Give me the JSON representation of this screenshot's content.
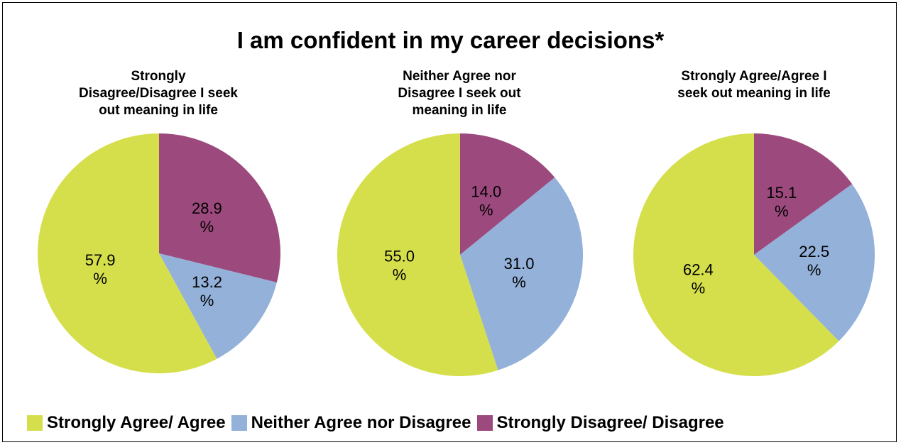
{
  "chart_data": {
    "type": "pie",
    "title": "I am confident in my career decisions*",
    "legend": {
      "position": "bottom",
      "entries": [
        {
          "label": "Strongly Agree/ Agree",
          "color": "#d5df4b"
        },
        {
          "label": "Neither Agree nor Disagree",
          "color": "#93b1d9"
        },
        {
          "label": "Strongly Disagree/ Disagree",
          "color": "#9c4a7d"
        }
      ]
    },
    "pies": [
      {
        "title": "Strongly Disagree/Disagree I seek out meaning in life",
        "title_lines": [
          "Strongly",
          "Disagree/Disagree I seek",
          "out meaning in life"
        ],
        "slices": [
          {
            "label": "Strongly Disagree/ Disagree",
            "value": 28.9,
            "text_lines": [
              "28.9",
              "%"
            ],
            "color": "#9c4a7d"
          },
          {
            "label": "Neither Agree nor Disagree",
            "value": 13.2,
            "text_lines": [
              "13.2",
              "%"
            ],
            "color": "#93b1d9"
          },
          {
            "label": "Strongly Agree/ Agree",
            "value": 57.9,
            "text_lines": [
              "57.9",
              "%"
            ],
            "color": "#d5df4b"
          }
        ]
      },
      {
        "title": "Neither Agree nor Disagree I seek out meaning in life",
        "title_lines": [
          "Neither Agree nor",
          "Disagree I seek out",
          "meaning in life"
        ],
        "slices": [
          {
            "label": "Strongly Disagree/ Disagree",
            "value": 14.0,
            "text_lines": [
              "14.0",
              "%"
            ],
            "color": "#9c4a7d"
          },
          {
            "label": "Neither Agree nor Disagree",
            "value": 31.0,
            "text_lines": [
              "31.0",
              "%"
            ],
            "color": "#93b1d9"
          },
          {
            "label": "Strongly Agree/ Agree",
            "value": 55.0,
            "text_lines": [
              "55.0",
              "%"
            ],
            "color": "#d5df4b"
          }
        ]
      },
      {
        "title": "Strongly Agree/Agree I seek out meaning in life",
        "title_lines": [
          "Strongly Agree/Agree I",
          "seek out meaning in life"
        ],
        "slices": [
          {
            "label": "Strongly Disagree/ Disagree",
            "value": 15.1,
            "text_lines": [
              "15.1",
              "%"
            ],
            "color": "#9c4a7d"
          },
          {
            "label": "Neither Agree nor Disagree",
            "value": 22.5,
            "text_lines": [
              "22.5",
              "%"
            ],
            "color": "#93b1d9"
          },
          {
            "label": "Strongly Agree/ Agree",
            "value": 62.4,
            "text_lines": [
              "62.4",
              "%"
            ],
            "color": "#d5df4b"
          }
        ]
      }
    ]
  }
}
